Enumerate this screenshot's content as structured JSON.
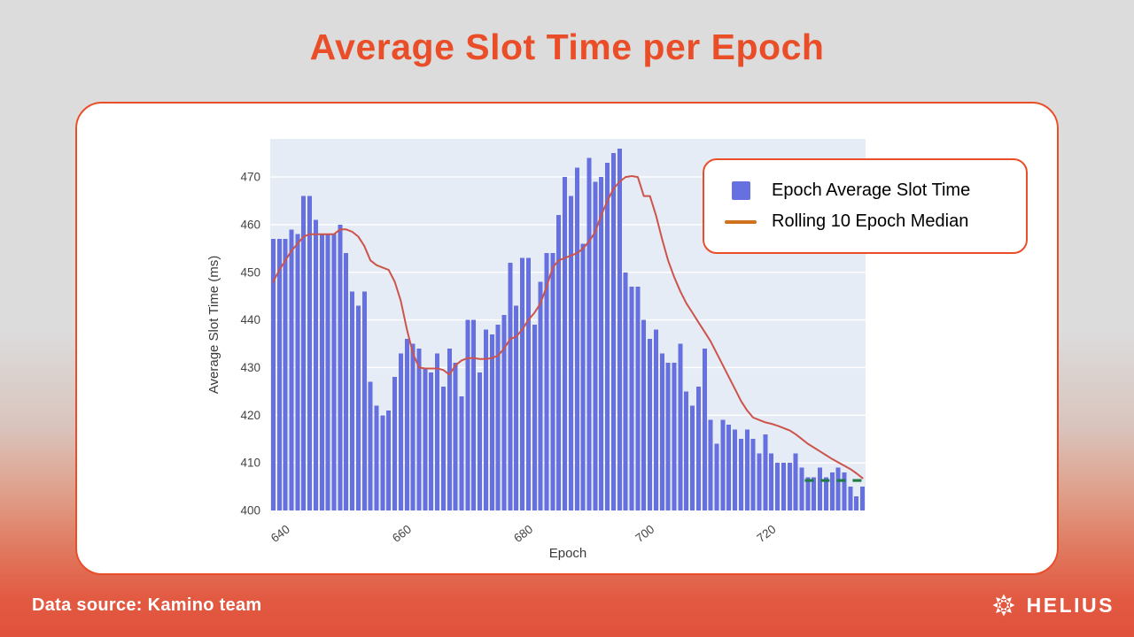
{
  "page": {
    "title": "Average Slot Time per Epoch",
    "footer": {
      "data_source": "Data source: Kamino team",
      "brand": "HELIUS"
    }
  },
  "colors": {
    "accent": "#e94e29",
    "bar": "#6670df",
    "line": "#cc544b",
    "legend_line": "#d0711d",
    "median_marker_green": "#1f7a44",
    "plot_bg": "#e5ecf6",
    "gridline": "#ffffff"
  },
  "chart_data": {
    "type": "bar",
    "title": "Average Slot Time per Epoch",
    "xlabel": "Epoch",
    "ylabel": "Average Slot Time (ms)",
    "ylim": [
      400,
      478
    ],
    "yticks": [
      400,
      410,
      420,
      430,
      440,
      450,
      460,
      470
    ],
    "xticks": [
      640,
      660,
      680,
      700,
      720
    ],
    "epoch_start": 638,
    "grid": "horizontal-white",
    "legend_position": "top-right",
    "series": [
      {
        "name": "Epoch Average Slot Time",
        "type": "bar",
        "values": [
          457,
          457,
          457,
          459,
          458,
          466,
          466,
          461,
          458,
          458,
          458,
          460,
          454,
          446,
          443,
          446,
          427,
          422,
          420,
          421,
          428,
          433,
          436,
          435,
          434,
          430,
          429,
          433,
          426,
          434,
          431,
          424,
          440,
          440,
          429,
          438,
          437,
          439,
          441,
          452,
          443,
          453,
          453,
          439,
          448,
          454,
          454,
          462,
          470,
          466,
          472,
          456,
          474,
          469,
          470,
          473,
          475,
          476,
          450,
          447,
          447,
          440,
          436,
          438,
          433,
          431,
          431,
          435,
          425,
          422,
          426,
          434,
          419,
          414,
          419,
          418,
          417,
          415,
          417,
          415,
          412,
          416,
          412,
          410,
          410,
          410,
          412,
          409,
          407,
          407,
          409,
          407,
          408,
          409,
          408,
          405,
          403,
          405
        ]
      },
      {
        "name": "Rolling 10 Epoch Median",
        "type": "line",
        "values": [
          448,
          450.5,
          452.5,
          454.5,
          456,
          457.5,
          458,
          458,
          458,
          458,
          458,
          459,
          459,
          458.5,
          457.5,
          455.5,
          452.5,
          451.5,
          451,
          450.5,
          448,
          444,
          438,
          433,
          430,
          429.8,
          429.8,
          429.8,
          429.5,
          428.5,
          430.5,
          431.5,
          432,
          432,
          431.8,
          431.8,
          432,
          432.5,
          434,
          436,
          436.5,
          438,
          440,
          441.5,
          443.5,
          447,
          451,
          452.5,
          453,
          453.5,
          454,
          455,
          456.5,
          458.5,
          462,
          465,
          467.5,
          469,
          470,
          470.2,
          470,
          466,
          466,
          462,
          457,
          452.5,
          449,
          446,
          443.5,
          441.5,
          439.5,
          437.5,
          435.5,
          433,
          430.5,
          428,
          425.5,
          423,
          421,
          419.5,
          419,
          418.5,
          418.2,
          417.8,
          417.3,
          416.8,
          416,
          415,
          414,
          413.2,
          412.4,
          411.6,
          410.8,
          410.1,
          409.4,
          408.7,
          407.8,
          406.8
        ]
      },
      {
        "name": "end-median-marker",
        "type": "dashed-line",
        "x_range": [
          726,
          736
        ],
        "value": 406.3
      }
    ],
    "legend": [
      {
        "label": "Epoch Average Slot Time",
        "swatch": "square",
        "color": "#6670df"
      },
      {
        "label": "Rolling 10 Epoch Median",
        "swatch": "line",
        "color": "#d0711d"
      }
    ]
  }
}
